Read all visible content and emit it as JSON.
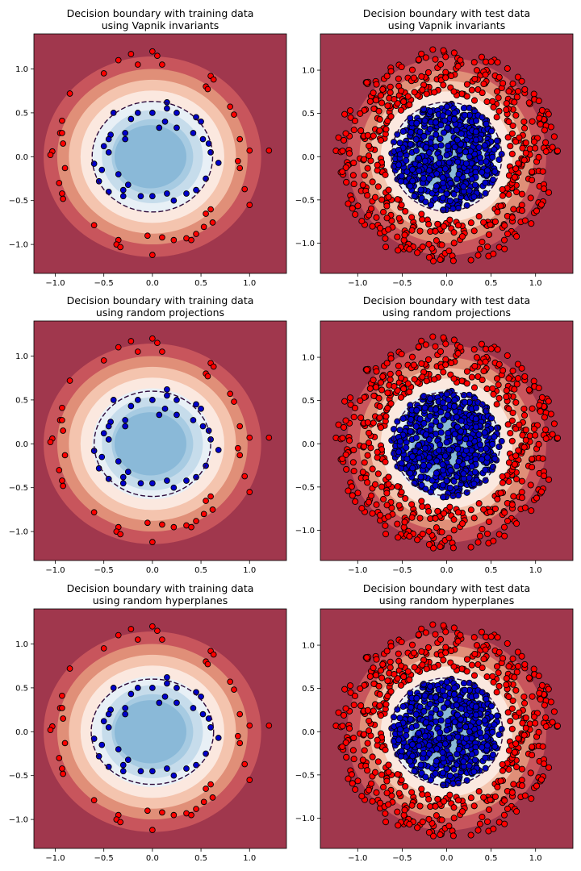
{
  "chart_data": [
    {
      "type": "scatter",
      "title_line1": "Decision boundary with training data",
      "title_line2": "using Vapnik invariants",
      "xlim": [
        -1.22,
        1.38
      ],
      "ylim": [
        -1.33,
        1.4
      ],
      "xticks": [
        -1.0,
        -0.5,
        0.0,
        0.5,
        1.0
      ],
      "yticks": [
        -1.0,
        -0.5,
        0.0,
        0.5,
        1.0
      ],
      "xtick_labels": [
        "−1.0",
        "−0.5",
        "0.0",
        "0.5",
        "1.0"
      ],
      "ytick_labels": [
        "−1.0",
        "−0.5",
        "0.0",
        "0.5",
        "1.0"
      ],
      "contour_center": [
        0.0,
        0.0
      ],
      "decision_boundary": {
        "rx": 0.62,
        "ry": 0.63
      },
      "series": [
        {
          "class": "outer",
          "points": [
            [
              -0.22,
              1.17
            ],
            [
              -0.15,
              1.05
            ],
            [
              0.0,
              1.2
            ],
            [
              0.05,
              1.15
            ],
            [
              -0.35,
              1.1
            ],
            [
              0.1,
              1.05
            ],
            [
              -0.5,
              0.95
            ],
            [
              0.6,
              0.92
            ],
            [
              0.63,
              0.88
            ],
            [
              0.55,
              0.8
            ],
            [
              0.57,
              0.77
            ],
            [
              -0.85,
              0.72
            ],
            [
              0.8,
              0.57
            ],
            [
              0.84,
              0.48
            ],
            [
              -0.93,
              0.41
            ],
            [
              -0.95,
              0.27
            ],
            [
              -0.93,
              0.27
            ],
            [
              -0.92,
              0.15
            ],
            [
              0.9,
              0.2
            ],
            [
              1.0,
              0.07
            ],
            [
              1.2,
              0.07
            ],
            [
              -1.03,
              0.06
            ],
            [
              -1.05,
              0.02
            ],
            [
              -0.9,
              -0.13
            ],
            [
              0.88,
              -0.05
            ],
            [
              0.9,
              -0.13
            ],
            [
              -0.96,
              -0.3
            ],
            [
              -0.93,
              -0.42
            ],
            [
              -0.92,
              -0.48
            ],
            [
              0.95,
              -0.37
            ],
            [
              1.0,
              -0.55
            ],
            [
              -0.6,
              -0.78
            ],
            [
              0.6,
              -0.6
            ],
            [
              0.55,
              -0.65
            ],
            [
              0.62,
              -0.75
            ],
            [
              0.53,
              -0.8
            ],
            [
              -0.35,
              -0.95
            ],
            [
              -0.37,
              -1.0
            ],
            [
              -0.33,
              -1.03
            ],
            [
              -0.05,
              -0.9
            ],
            [
              0.1,
              -0.92
            ],
            [
              0.22,
              -0.95
            ],
            [
              0.35,
              -0.93
            ],
            [
              0.4,
              -0.95
            ],
            [
              0.45,
              -0.88
            ],
            [
              0.0,
              -1.12
            ]
          ]
        },
        {
          "class": "inner",
          "points": [
            [
              0.15,
              0.62
            ],
            [
              0.15,
              0.55
            ],
            [
              0.0,
              0.5
            ],
            [
              -0.15,
              0.5
            ],
            [
              0.25,
              0.5
            ],
            [
              -0.4,
              0.5
            ],
            [
              0.45,
              0.45
            ],
            [
              0.5,
              0.4
            ],
            [
              -0.22,
              0.43
            ],
            [
              0.13,
              0.4
            ],
            [
              0.25,
              0.33
            ],
            [
              0.07,
              0.33
            ],
            [
              0.42,
              0.27
            ],
            [
              -0.28,
              0.27
            ],
            [
              -0.43,
              0.25
            ],
            [
              -0.45,
              0.2
            ],
            [
              -0.28,
              0.2
            ],
            [
              0.52,
              0.2
            ],
            [
              0.58,
              0.15
            ],
            [
              -0.5,
              0.12
            ],
            [
              -0.45,
              0.05
            ],
            [
              0.6,
              0.05
            ],
            [
              0.68,
              -0.07
            ],
            [
              -0.6,
              -0.08
            ],
            [
              -0.52,
              -0.15
            ],
            [
              -0.35,
              -0.2
            ],
            [
              -0.55,
              -0.28
            ],
            [
              0.55,
              -0.25
            ],
            [
              -0.25,
              -0.32
            ],
            [
              -0.3,
              -0.38
            ],
            [
              0.45,
              -0.38
            ],
            [
              -0.45,
              -0.4
            ],
            [
              0.35,
              -0.42
            ],
            [
              -0.3,
              -0.45
            ],
            [
              0.15,
              -0.42
            ],
            [
              0.22,
              -0.5
            ],
            [
              -0.12,
              -0.45
            ],
            [
              0.0,
              -0.45
            ]
          ]
        }
      ]
    },
    {
      "type": "scatter",
      "title_line1": "Decision boundary with test data",
      "title_line2": "using Vapnik invariants",
      "xlim": [
        -1.42,
        1.42
      ],
      "ylim": [
        -1.35,
        1.42
      ],
      "xticks": [
        -1.0,
        -0.5,
        0.0,
        0.5,
        1.0
      ],
      "yticks": [
        -1.0,
        -0.5,
        0.0,
        0.5,
        1.0
      ],
      "xtick_labels": [
        "−1.0",
        "−0.5",
        "0.0",
        "0.5",
        "1.0"
      ],
      "ytick_labels": [
        "−1.0",
        "−0.5",
        "0.0",
        "0.5",
        "1.0"
      ],
      "contour_center": [
        0.0,
        0.0
      ],
      "decision_boundary": {
        "rx": 0.62,
        "ry": 0.63
      },
      "scatter_generated": {
        "seed": 7,
        "outer_count": 500,
        "inner_count": 500,
        "outer_r": [
          0.72,
          1.25
        ],
        "inner_r": [
          0.0,
          0.62
        ]
      }
    },
    {
      "type": "scatter",
      "title_line1": "Decision boundary with training data",
      "title_line2": "using random projections",
      "xlim": [
        -1.22,
        1.38
      ],
      "ylim": [
        -1.33,
        1.4
      ],
      "xticks": [
        -1.0,
        -0.5,
        0.0,
        0.5,
        1.0
      ],
      "yticks": [
        -1.0,
        -0.5,
        0.0,
        0.5,
        1.0
      ],
      "xtick_labels": [
        "−1.0",
        "−0.5",
        "0.0",
        "0.5",
        "1.0"
      ],
      "ytick_labels": [
        "−1.0",
        "−0.5",
        "0.0",
        "0.5",
        "1.0"
      ],
      "contour_center": [
        0.0,
        0.0
      ],
      "decision_boundary": {
        "rx": 0.6,
        "ry": 0.6
      },
      "series_from": 0
    },
    {
      "type": "scatter",
      "title_line1": "Decision boundary with test data",
      "title_line2": "using random projections",
      "xlim": [
        -1.42,
        1.42
      ],
      "ylim": [
        -1.35,
        1.42
      ],
      "xticks": [
        -1.0,
        -0.5,
        0.0,
        0.5,
        1.0
      ],
      "yticks": [
        -1.0,
        -0.5,
        0.0,
        0.5,
        1.0
      ],
      "xtick_labels": [
        "−1.0",
        "−0.5",
        "0.0",
        "0.5",
        "1.0"
      ],
      "ytick_labels": [
        "−1.0",
        "−0.5",
        "0.0",
        "0.5",
        "1.0"
      ],
      "contour_center": [
        0.0,
        0.0
      ],
      "decision_boundary": {
        "rx": 0.6,
        "ry": 0.6
      },
      "scatter_generated": {
        "seed": 7,
        "outer_count": 500,
        "inner_count": 500,
        "outer_r": [
          0.72,
          1.25
        ],
        "inner_r": [
          0.0,
          0.62
        ]
      }
    },
    {
      "type": "scatter",
      "title_line1": "Decision boundary with training data",
      "title_line2": "using random hyperplanes",
      "xlim": [
        -1.22,
        1.38
      ],
      "ylim": [
        -1.33,
        1.4
      ],
      "xticks": [
        -1.0,
        -0.5,
        0.0,
        0.5,
        1.0
      ],
      "yticks": [
        -1.0,
        -0.5,
        0.0,
        0.5,
        1.0
      ],
      "xtick_labels": [
        "−1.0",
        "−0.5",
        "0.0",
        "0.5",
        "1.0"
      ],
      "ytick_labels": [
        "−1.0",
        "−0.5",
        "0.0",
        "0.5",
        "1.0"
      ],
      "contour_center": [
        0.0,
        0.0
      ],
      "decision_boundary": {
        "rx": 0.63,
        "ry": 0.6
      },
      "series_from": 0
    },
    {
      "type": "scatter",
      "title_line1": "Decision boundary with test data",
      "title_line2": "using random hyperplanes",
      "xlim": [
        -1.42,
        1.42
      ],
      "ylim": [
        -1.35,
        1.42
      ],
      "xticks": [
        -1.0,
        -0.5,
        0.0,
        0.5,
        1.0
      ],
      "yticks": [
        -1.0,
        -0.5,
        0.0,
        0.5,
        1.0
      ],
      "xtick_labels": [
        "−1.0",
        "−0.5",
        "0.0",
        "0.5",
        "1.0"
      ],
      "ytick_labels": [
        "−1.0",
        "−0.5",
        "0.0",
        "0.5",
        "1.0"
      ],
      "contour_center": [
        0.0,
        0.0
      ],
      "decision_boundary": {
        "rx": 0.63,
        "ry": 0.62
      },
      "scatter_generated": {
        "seed": 7,
        "outer_count": 500,
        "inner_count": 500,
        "outer_r": [
          0.72,
          1.25
        ],
        "inner_r": [
          0.0,
          0.62
        ]
      }
    }
  ],
  "colors": {
    "background_dark_red": "#a0374d",
    "contour_levels": [
      "#a0374d",
      "#c8555c",
      "#e08f78",
      "#f4c4ae",
      "#fbe8df",
      "#e8f0f6",
      "#c6dceb",
      "#a7cbe2",
      "#8ab9d8"
    ],
    "outer_point_fill": "#ff0000",
    "inner_point_fill": "#0000cc",
    "point_edge": "#000000",
    "boundary_line": "#2d0a3a"
  }
}
